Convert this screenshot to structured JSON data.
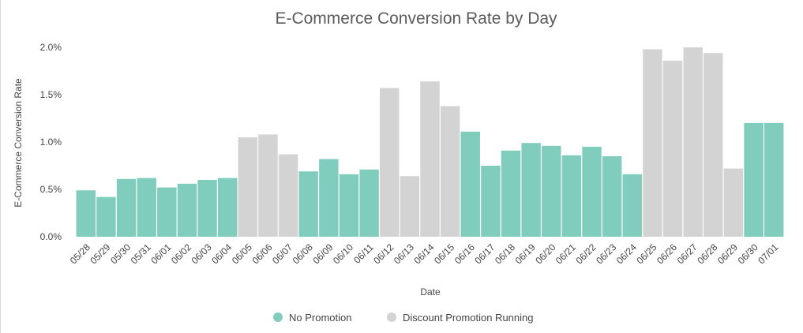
{
  "chart_data": {
    "type": "bar",
    "title": "E-Commerce Conversion Rate by Day",
    "xlabel": "Date",
    "ylabel": "E-Commerce Conversion Rate",
    "ylim": [
      0,
      2.2
    ],
    "yticks": [
      "0.0%",
      "0.5%",
      "1.0%",
      "1.5%",
      "2.0%"
    ],
    "ytick_values": [
      0,
      0.5,
      1.0,
      1.5,
      2.0
    ],
    "categories": [
      "05/28",
      "05/29",
      "05/30",
      "05/31",
      "06/01",
      "06/02",
      "06/03",
      "06/04",
      "06/05",
      "06/06",
      "06/07",
      "06/08",
      "06/09",
      "06/10",
      "06/11",
      "06/12",
      "06/13",
      "06/14",
      "06/15",
      "06/16",
      "06/17",
      "06/18",
      "06/19",
      "06/20",
      "06/21",
      "06/22",
      "06/23",
      "06/24",
      "06/25",
      "06/26",
      "06/27",
      "06/28",
      "06/29",
      "06/30",
      "07/01"
    ],
    "values": [
      0.49,
      0.42,
      0.61,
      0.62,
      0.52,
      0.56,
      0.6,
      0.62,
      1.05,
      1.08,
      0.87,
      0.69,
      0.82,
      0.66,
      0.71,
      1.57,
      0.64,
      1.64,
      1.38,
      1.11,
      0.75,
      0.91,
      0.99,
      0.96,
      0.86,
      0.95,
      0.85,
      0.66,
      1.98,
      1.86,
      2.0,
      1.94,
      0.72,
      1.2,
      1.2
    ],
    "groups": [
      "none",
      "none",
      "none",
      "none",
      "none",
      "none",
      "none",
      "none",
      "promo",
      "promo",
      "promo",
      "none",
      "none",
      "none",
      "none",
      "promo",
      "promo",
      "promo",
      "promo",
      "none",
      "none",
      "none",
      "none",
      "none",
      "none",
      "none",
      "none",
      "none",
      "promo",
      "promo",
      "promo",
      "promo",
      "promo",
      "none",
      "none"
    ],
    "legend": [
      {
        "key": "none",
        "label": "No Promotion",
        "color": "#80cdbe"
      },
      {
        "key": "promo",
        "label": "Discount Promotion Running",
        "color": "#d3d3d3"
      }
    ],
    "legend_position": "bottom-center",
    "grid": false
  }
}
